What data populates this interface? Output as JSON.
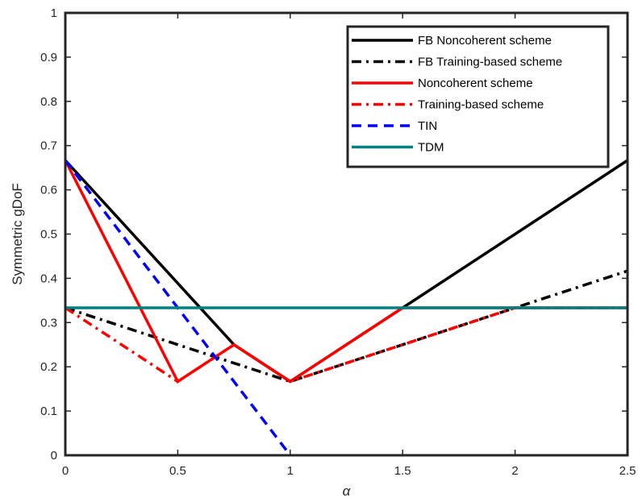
{
  "chart_data": {
    "type": "line",
    "title": "",
    "xlabel": "α",
    "ylabel": "Symmetric gDoF",
    "xlim": [
      0,
      2.5
    ],
    "ylim": [
      0,
      1
    ],
    "xticks": [
      0,
      0.5,
      1,
      1.5,
      2,
      2.5
    ],
    "xtick_labels": [
      "0",
      "0.5",
      "1",
      "1.5",
      "2",
      "2.5"
    ],
    "yticks": [
      0,
      0.1,
      0.2,
      0.3,
      0.4,
      0.5,
      0.6,
      0.7,
      0.8,
      0.9,
      1
    ],
    "ytick_labels": [
      "0",
      "0.1",
      "0.2",
      "0.3",
      "0.4",
      "0.5",
      "0.6",
      "0.7",
      "0.8",
      "0.9",
      "1"
    ],
    "grid": false,
    "legend_position": "top-right",
    "series": [
      {
        "name": "FB Noncoherent scheme",
        "color": "#000000",
        "style": "solid",
        "x": [
          0,
          0.75,
          1,
          1.5,
          2.5
        ],
        "y": [
          0.6667,
          0.25,
          0.1667,
          0.3333,
          0.6667
        ]
      },
      {
        "name": "FB Training-based scheme",
        "color": "#000000",
        "style": "dashdot",
        "x": [
          0,
          1,
          2,
          2.5
        ],
        "y": [
          0.3333,
          0.1667,
          0.3333,
          0.4167
        ]
      },
      {
        "name": "Noncoherent scheme",
        "color": "#ff0000",
        "style": "solid",
        "x": [
          0,
          0.5,
          0.75,
          1,
          1.5,
          2.5
        ],
        "y": [
          0.6667,
          0.1667,
          0.25,
          0.1667,
          0.3333,
          0.3333
        ]
      },
      {
        "name": "Training-based scheme",
        "color": "#ff0000",
        "style": "dashdot",
        "x": [
          0,
          0.5,
          0.75,
          1,
          2,
          2.5
        ],
        "y": [
          0.3333,
          0.1667,
          0.25,
          0.1667,
          0.3333,
          0.3333
        ]
      },
      {
        "name": "TIN",
        "color": "#0000ff",
        "style": "dashed",
        "x": [
          0,
          1
        ],
        "y": [
          0.6667,
          0
        ]
      },
      {
        "name": "TDM",
        "color": "#008080",
        "style": "solid",
        "x": [
          0,
          2.5
        ],
        "y": [
          0.3333,
          0.3333
        ]
      }
    ]
  }
}
